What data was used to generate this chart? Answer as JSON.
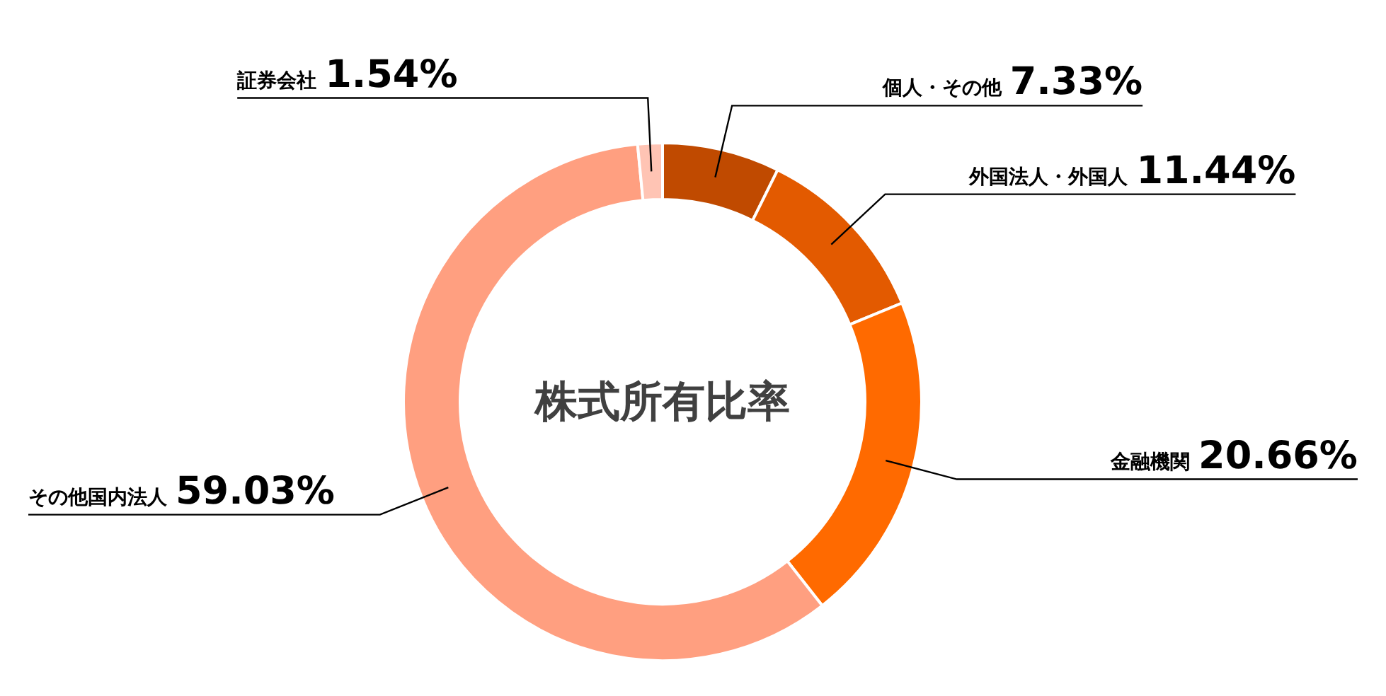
{
  "chart_data": {
    "type": "donut",
    "title": "株式所有比率",
    "categories": [
      "個人・その他",
      "外国法人・外国人",
      "金融機関",
      "その他国内法人",
      "証券会社"
    ],
    "values": [
      7.33,
      11.44,
      20.66,
      59.03,
      1.54
    ],
    "value_labels": [
      "7.33%",
      "11.44%",
      "20.66%",
      "59.03%",
      "1.54%"
    ],
    "colors": [
      "#c04a00",
      "#e35a00",
      "#ff6a00",
      "#ff9f80",
      "#ffc4b4"
    ]
  }
}
